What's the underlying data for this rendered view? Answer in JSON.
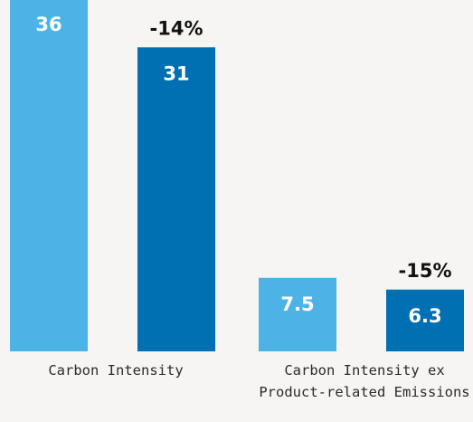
{
  "chart_data": {
    "type": "bar",
    "categories": [
      [
        "Carbon Intensity"
      ],
      [
        "Carbon Intensity ex",
        "Product-related Emissions"
      ]
    ],
    "series": [
      {
        "values": [
          36,
          7.5
        ],
        "color": "#4db3e6"
      },
      {
        "values": [
          31,
          6.3
        ],
        "color": "#0070b3"
      }
    ],
    "value_labels": [
      [
        "36",
        "31"
      ],
      [
        "7.5",
        "6.3"
      ]
    ],
    "change_labels": [
      "-14%",
      "-15%"
    ],
    "grid": false,
    "legend": "none"
  }
}
